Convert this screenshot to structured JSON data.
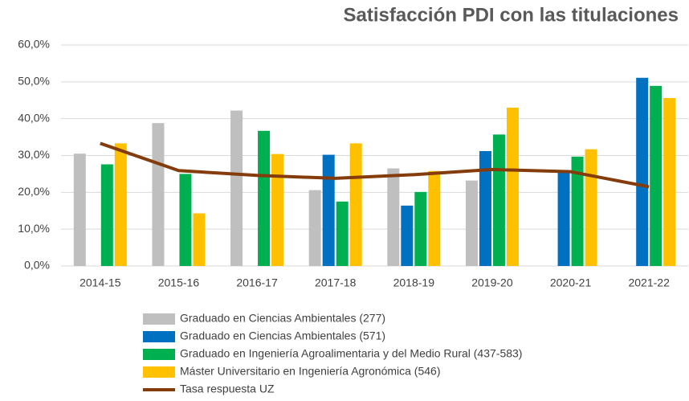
{
  "chart_data": {
    "type": "bar",
    "title": "Satisfacción PDI con las titulaciones",
    "categories": [
      "2014-15",
      "2015-16",
      "2016-17",
      "2017-18",
      "2018-19",
      "2019-20",
      "2020-21",
      "2021-22"
    ],
    "series": [
      {
        "name": "Graduado en Ciencias Ambientales (277)",
        "color": "#bfbfbf",
        "values": [
          30.5,
          38.8,
          42.2,
          20.6,
          26.5,
          23.2,
          null,
          null
        ]
      },
      {
        "name": "Graduado en Ciencias Ambientales (571)",
        "color": "#0070c0",
        "values": [
          null,
          null,
          null,
          30.2,
          16.4,
          31.2,
          25.8,
          51.1
        ]
      },
      {
        "name": "Graduado en Ingeniería Agroalimentaria y del Medio Rural (437-583)",
        "color": "#00b050",
        "values": [
          27.6,
          25.0,
          36.7,
          17.5,
          20.1,
          35.7,
          29.7,
          48.9
        ]
      },
      {
        "name": "Máster Universitario en Ingeniería Agronómica (546)",
        "color": "#ffc000",
        "values": [
          33.3,
          14.3,
          30.4,
          33.3,
          25.8,
          43.0,
          31.7,
          45.6
        ]
      },
      {
        "name": "Tasa respuesta UZ",
        "color": "#843c0c",
        "type": "line",
        "values": [
          33.3,
          25.9,
          24.6,
          23.8,
          24.8,
          26.2,
          25.6,
          21.5
        ]
      }
    ],
    "ylim": [
      0,
      60
    ],
    "yticks": [
      {
        "value": 0,
        "label": "0,0%"
      },
      {
        "value": 10,
        "label": "10,0%"
      },
      {
        "value": 20,
        "label": "20,0%"
      },
      {
        "value": 30,
        "label": "30,0%"
      },
      {
        "value": 40,
        "label": "40,0%"
      },
      {
        "value": 50,
        "label": "50,0%"
      },
      {
        "value": 60,
        "label": "60,0%"
      }
    ],
    "grid": true
  }
}
